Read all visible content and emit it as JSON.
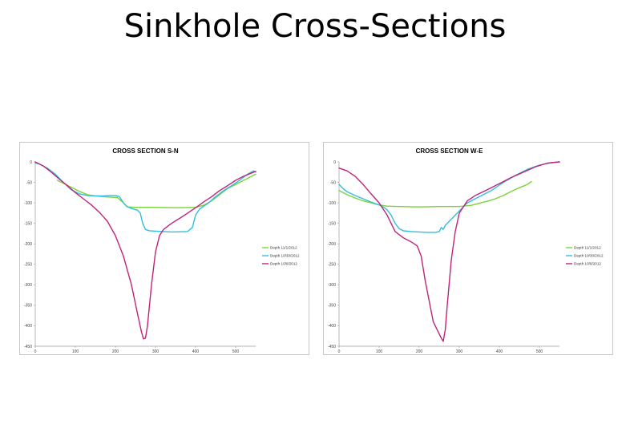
{
  "slide": {
    "title": "Sinkhole Cross-Sections"
  },
  "colors": {
    "nov1": "#7cd23a",
    "oct30": "#2fbfe0",
    "oct9": "#c0247a"
  },
  "chart_data": [
    {
      "type": "line",
      "title": "CROSS SECTION S-N",
      "xlim": [
        0,
        550
      ],
      "ylim": [
        -450,
        0
      ],
      "xticks": [
        "0",
        "100",
        "200",
        "300",
        "400",
        "500"
      ],
      "yticks": [
        "0",
        "-50",
        "-100",
        "-150",
        "-200",
        "-250",
        "-300",
        "-350",
        "-400",
        "-450"
      ],
      "grid": false,
      "legend": "right",
      "series": [
        {
          "name": "Depth 11/1/2012",
          "color": "#7cd23a",
          "x": [
            55,
            70,
            90,
            110,
            130,
            150,
            170,
            190,
            205,
            220,
            230,
            250,
            300,
            350,
            400,
            420,
            440,
            460,
            480,
            500,
            520,
            540,
            550
          ],
          "y": [
            -45,
            -52,
            -62,
            -72,
            -80,
            -83,
            -85,
            -86,
            -87,
            -100,
            -110,
            -111,
            -111,
            -112,
            -111,
            -106,
            -95,
            -80,
            -65,
            -55,
            -45,
            -35,
            -30
          ]
        },
        {
          "name": "Depth 10/30/2012",
          "color": "#2fbfe0",
          "x": [
            0,
            10,
            30,
            50,
            70,
            90,
            110,
            130,
            150,
            170,
            185,
            200,
            210,
            220,
            228,
            235,
            245,
            255,
            262,
            268,
            275,
            285,
            300,
            340,
            380,
            392,
            400,
            410,
            430,
            450,
            470,
            490,
            510,
            530,
            545,
            550
          ],
          "y": [
            -3,
            -5,
            -15,
            -30,
            -50,
            -68,
            -78,
            -82,
            -83,
            -83,
            -82,
            -82,
            -85,
            -100,
            -108,
            -112,
            -115,
            -118,
            -125,
            -150,
            -165,
            -168,
            -169,
            -171,
            -170,
            -160,
            -130,
            -115,
            -102,
            -85,
            -70,
            -58,
            -45,
            -30,
            -22,
            -25
          ]
        },
        {
          "name": "Depth 10/9/2012",
          "color": "#c0247a",
          "x": [
            0,
            20,
            40,
            60,
            80,
            100,
            120,
            140,
            160,
            180,
            200,
            220,
            240,
            255,
            265,
            270,
            275,
            280,
            290,
            300,
            310,
            320,
            340,
            360,
            380,
            400,
            420,
            440,
            460,
            480,
            500,
            520,
            540,
            550
          ],
          "y": [
            0,
            -10,
            -25,
            -42,
            -58,
            -75,
            -90,
            -105,
            -123,
            -145,
            -180,
            -230,
            -300,
            -370,
            -415,
            -432,
            -430,
            -400,
            -300,
            -220,
            -180,
            -165,
            -150,
            -138,
            -125,
            -112,
            -98,
            -85,
            -70,
            -58,
            -45,
            -35,
            -27,
            -23
          ]
        }
      ]
    },
    {
      "type": "line",
      "title": "CROSS SECTION W-E",
      "xlim": [
        0,
        550
      ],
      "ylim": [
        -450,
        0
      ],
      "xticks": [
        "0",
        "100",
        "200",
        "300",
        "400",
        "500"
      ],
      "yticks": [
        "0",
        "-50",
        "-100",
        "-150",
        "-200",
        "-250",
        "-300",
        "-350",
        "-400",
        "-450"
      ],
      "grid": false,
      "legend": "right",
      "series": [
        {
          "name": "Depth 11/1/2012",
          "color": "#7cd23a",
          "x": [
            0,
            20,
            40,
            60,
            80,
            100,
            120,
            150,
            200,
            250,
            300,
            330,
            350,
            370,
            390,
            410,
            430,
            450,
            470,
            480
          ],
          "y": [
            -70,
            -80,
            -88,
            -95,
            -100,
            -105,
            -108,
            -109,
            -110,
            -109,
            -109,
            -106,
            -101,
            -96,
            -90,
            -82,
            -72,
            -63,
            -55,
            -48
          ]
        },
        {
          "name": "Depth 10/30/2012",
          "color": "#2fbfe0",
          "x": [
            0,
            10,
            20,
            40,
            60,
            80,
            100,
            110,
            120,
            130,
            140,
            150,
            160,
            180,
            200,
            220,
            240,
            250,
            255,
            260,
            265,
            275,
            290,
            300,
            320,
            350,
            380,
            410,
            440,
            470,
            500,
            530,
            550
          ],
          "y": [
            -55,
            -65,
            -73,
            -82,
            -90,
            -98,
            -105,
            -110,
            -117,
            -130,
            -150,
            -163,
            -168,
            -170,
            -171,
            -172,
            -172,
            -170,
            -160,
            -165,
            -155,
            -145,
            -130,
            -120,
            -100,
            -85,
            -70,
            -50,
            -33,
            -18,
            -8,
            -2,
            0
          ]
        },
        {
          "name": "Depth 10/9/2012",
          "color": "#c0247a",
          "x": [
            0,
            20,
            40,
            60,
            80,
            100,
            120,
            140,
            160,
            180,
            195,
            205,
            215,
            225,
            235,
            245,
            255,
            260,
            265,
            270,
            280,
            290,
            300,
            320,
            340,
            370,
            400,
            430,
            460,
            490,
            520,
            550
          ],
          "y": [
            -15,
            -22,
            -35,
            -55,
            -78,
            -100,
            -130,
            -170,
            -185,
            -195,
            -205,
            -230,
            -290,
            -340,
            -390,
            -410,
            -430,
            -438,
            -410,
            -350,
            -240,
            -170,
            -125,
            -95,
            -82,
            -68,
            -53,
            -38,
            -25,
            -12,
            -3,
            0
          ]
        }
      ]
    }
  ]
}
